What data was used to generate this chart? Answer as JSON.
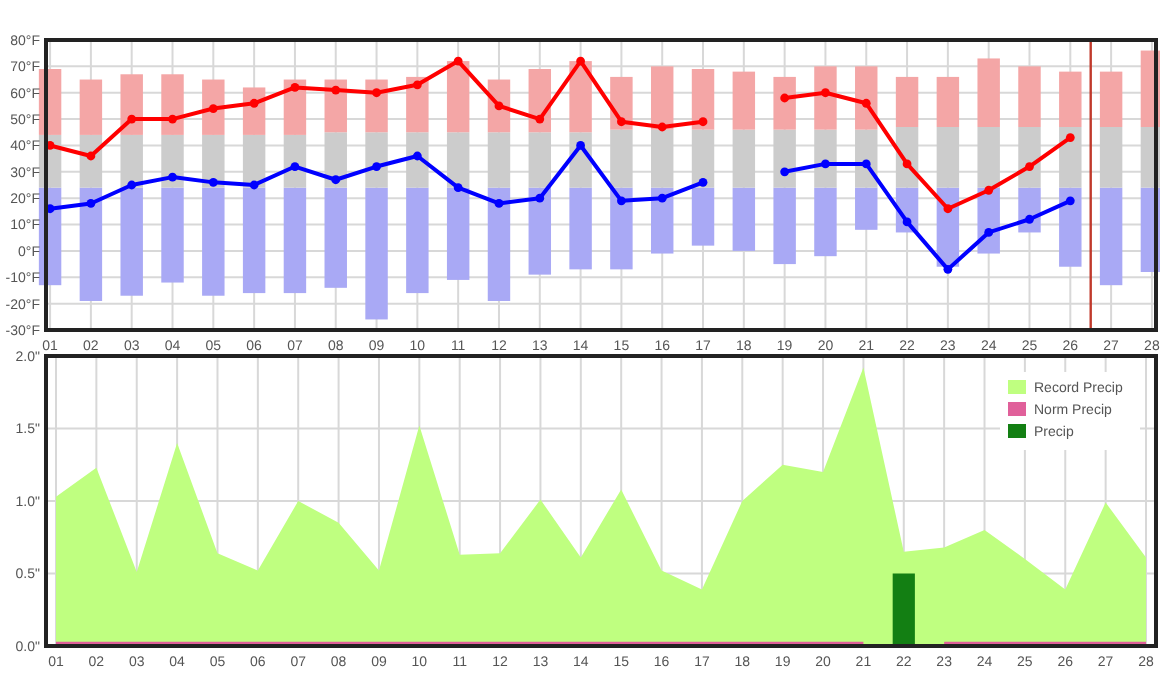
{
  "chart_data": [
    {
      "type": "bar",
      "grid": true,
      "marker": "circle",
      "line_style": "solid",
      "x": [
        1,
        2,
        3,
        4,
        5,
        6,
        7,
        8,
        9,
        10,
        11,
        12,
        13,
        14,
        15,
        16,
        17,
        18,
        19,
        20,
        21,
        22,
        23,
        24,
        25,
        26,
        27,
        28
      ],
      "xlim": [
        0.9,
        28.1
      ],
      "xticks": [
        {
          "value": 1,
          "label": "01"
        },
        {
          "value": 2,
          "label": "02"
        },
        {
          "value": 3,
          "label": "03"
        },
        {
          "value": 4,
          "label": "04"
        },
        {
          "value": 5,
          "label": "05"
        },
        {
          "value": 6,
          "label": "06"
        },
        {
          "value": 7,
          "label": "07"
        },
        {
          "value": 8,
          "label": "08"
        },
        {
          "value": 9,
          "label": "09"
        },
        {
          "value": 10,
          "label": "10"
        },
        {
          "value": 11,
          "label": "11"
        },
        {
          "value": 12,
          "label": "12"
        },
        {
          "value": 13,
          "label": "13"
        },
        {
          "value": 14,
          "label": "14"
        },
        {
          "value": 15,
          "label": "15"
        },
        {
          "value": 16,
          "label": "16"
        },
        {
          "value": 17,
          "label": "17"
        },
        {
          "value": 18,
          "label": "18"
        },
        {
          "value": 19,
          "label": "19"
        },
        {
          "value": 20,
          "label": "20"
        },
        {
          "value": 21,
          "label": "21"
        },
        {
          "value": 22,
          "label": "22"
        },
        {
          "value": 23,
          "label": "23"
        },
        {
          "value": 24,
          "label": "24"
        },
        {
          "value": 25,
          "label": "25"
        },
        {
          "value": 26,
          "label": "26"
        },
        {
          "value": 27,
          "label": "27"
        },
        {
          "value": 28,
          "label": "28"
        }
      ],
      "ylim": [
        -30,
        80
      ],
      "yticks": [
        {
          "value": -30,
          "label": "-30°F"
        },
        {
          "value": -20,
          "label": "-20°F"
        },
        {
          "value": -10,
          "label": "-10°F"
        },
        {
          "value": 0,
          "label": "0°F"
        },
        {
          "value": 10,
          "label": "10°F"
        },
        {
          "value": 20,
          "label": "20°F"
        },
        {
          "value": 30,
          "label": "30°F"
        },
        {
          "value": 40,
          "label": "40°F"
        },
        {
          "value": 50,
          "label": "50°F"
        },
        {
          "value": 60,
          "label": "60°F"
        },
        {
          "value": 70,
          "label": "70°F"
        },
        {
          "value": 80,
          "label": "80°F"
        }
      ],
      "series": [
        {
          "color": "#a9a9f5",
          "base": [
            -13,
            -19,
            -17,
            -12,
            -17,
            -16,
            -16,
            -14,
            -26,
            -16,
            -11,
            -19,
            -9,
            -7,
            -7,
            -1,
            2,
            0,
            -5,
            -2,
            8,
            7,
            -6,
            -1,
            7,
            -6,
            -13,
            -8
          ],
          "values": [
            37,
            43,
            41,
            36,
            41,
            40,
            40,
            38,
            50,
            40,
            35,
            43,
            33,
            31,
            31,
            25,
            22,
            24,
            29,
            26,
            16,
            17,
            30,
            25,
            17,
            30,
            37,
            32
          ]
        },
        {
          "color": "#cccccc",
          "base": [
            24,
            24,
            24,
            24,
            24,
            24,
            24,
            24,
            24,
            24,
            24,
            24,
            24,
            24,
            24,
            24,
            24,
            24,
            24,
            24,
            24,
            24,
            24,
            24,
            24,
            24,
            24,
            24
          ],
          "values": [
            20,
            20,
            20,
            20,
            20,
            20,
            20,
            21,
            21,
            21,
            21,
            21,
            21,
            21,
            22,
            22,
            22,
            22,
            22,
            22,
            22,
            23,
            23,
            23,
            23,
            23,
            23,
            23
          ]
        },
        {
          "color": "#f4a6a6",
          "base": [
            44,
            44,
            44,
            44,
            44,
            44,
            44,
            45,
            45,
            45,
            45,
            45,
            45,
            45,
            46,
            46,
            46,
            46,
            46,
            46,
            46,
            47,
            47,
            47,
            47,
            47,
            47,
            47
          ],
          "values": [
            25,
            21,
            23,
            23,
            21,
            18,
            21,
            20,
            20,
            21,
            27,
            20,
            24,
            27,
            20,
            24,
            23,
            22,
            20,
            24,
            24,
            19,
            19,
            26,
            23,
            21,
            21,
            29
          ]
        },
        {
          "type": "line",
          "color": "#ff0000",
          "values": [
            40,
            36,
            50,
            50,
            54,
            56,
            62,
            61,
            60,
            63,
            72,
            55,
            50,
            72,
            49,
            47,
            49,
            null,
            58,
            60,
            56,
            33,
            16,
            23,
            32,
            43,
            null,
            null
          ]
        },
        {
          "type": "line",
          "color": "#0000ff",
          "values": [
            16,
            18,
            25,
            28,
            26,
            25,
            32,
            27,
            32,
            36,
            24,
            18,
            20,
            40,
            19,
            20,
            26,
            null,
            30,
            33,
            33,
            11,
            -7,
            7,
            12,
            19,
            null,
            null
          ]
        }
      ],
      "ref_lines": [
        {
          "axis": "x",
          "value": 26.5,
          "color": "#c0392b"
        }
      ]
    },
    {
      "type": "area",
      "grid": true,
      "legend": "top right",
      "categories": [
        "01",
        "02",
        "03",
        "04",
        "05",
        "06",
        "07",
        "08",
        "09",
        "10",
        "11",
        "12",
        "13",
        "14",
        "15",
        "16",
        "17",
        "18",
        "19",
        "20",
        "21",
        "22",
        "23",
        "24",
        "25",
        "26",
        "27",
        "28"
      ],
      "ylim": [
        0,
        2
      ],
      "yticks": [
        {
          "value": 0,
          "label": "0.0\""
        },
        {
          "value": 0.5,
          "label": "0.5\""
        },
        {
          "value": 1,
          "label": "1.0\""
        },
        {
          "value": 1.5,
          "label": "1.5\""
        },
        {
          "value": 2,
          "label": "2.0\""
        }
      ],
      "series": [
        {
          "name": "Record Precip",
          "color": "#bfff80",
          "values": [
            1.03,
            1.23,
            0.51,
            1.4,
            0.64,
            0.52,
            1.0,
            0.85,
            0.52,
            1.52,
            0.63,
            0.64,
            1.01,
            0.61,
            1.08,
            0.52,
            0.39,
            1.0,
            1.25,
            1.2,
            1.92,
            0.65,
            0.68,
            0.8,
            0.6,
            0.39,
            0.99,
            0.61
          ]
        },
        {
          "name": "Norm Precip",
          "color": "#e0609a",
          "values": [
            0.03,
            0.03,
            0.03,
            0.03,
            0.03,
            0.03,
            0.03,
            0.03,
            0.03,
            0.03,
            0.03,
            0.03,
            0.03,
            0.03,
            0.03,
            0.03,
            0.03,
            0.03,
            0.03,
            0.03,
            0.03,
            null,
            0.03,
            0.03,
            0.03,
            0.03,
            0.03,
            0.03
          ]
        },
        {
          "name": "Precip",
          "type": "bar",
          "color": "#137f13",
          "values": [
            0,
            0,
            0,
            0,
            0,
            0,
            0,
            0,
            0,
            0,
            0,
            0,
            0,
            0,
            0,
            0,
            0,
            0,
            0,
            0,
            0,
            0.5,
            0,
            0,
            0,
            0,
            0,
            0
          ]
        }
      ]
    }
  ]
}
